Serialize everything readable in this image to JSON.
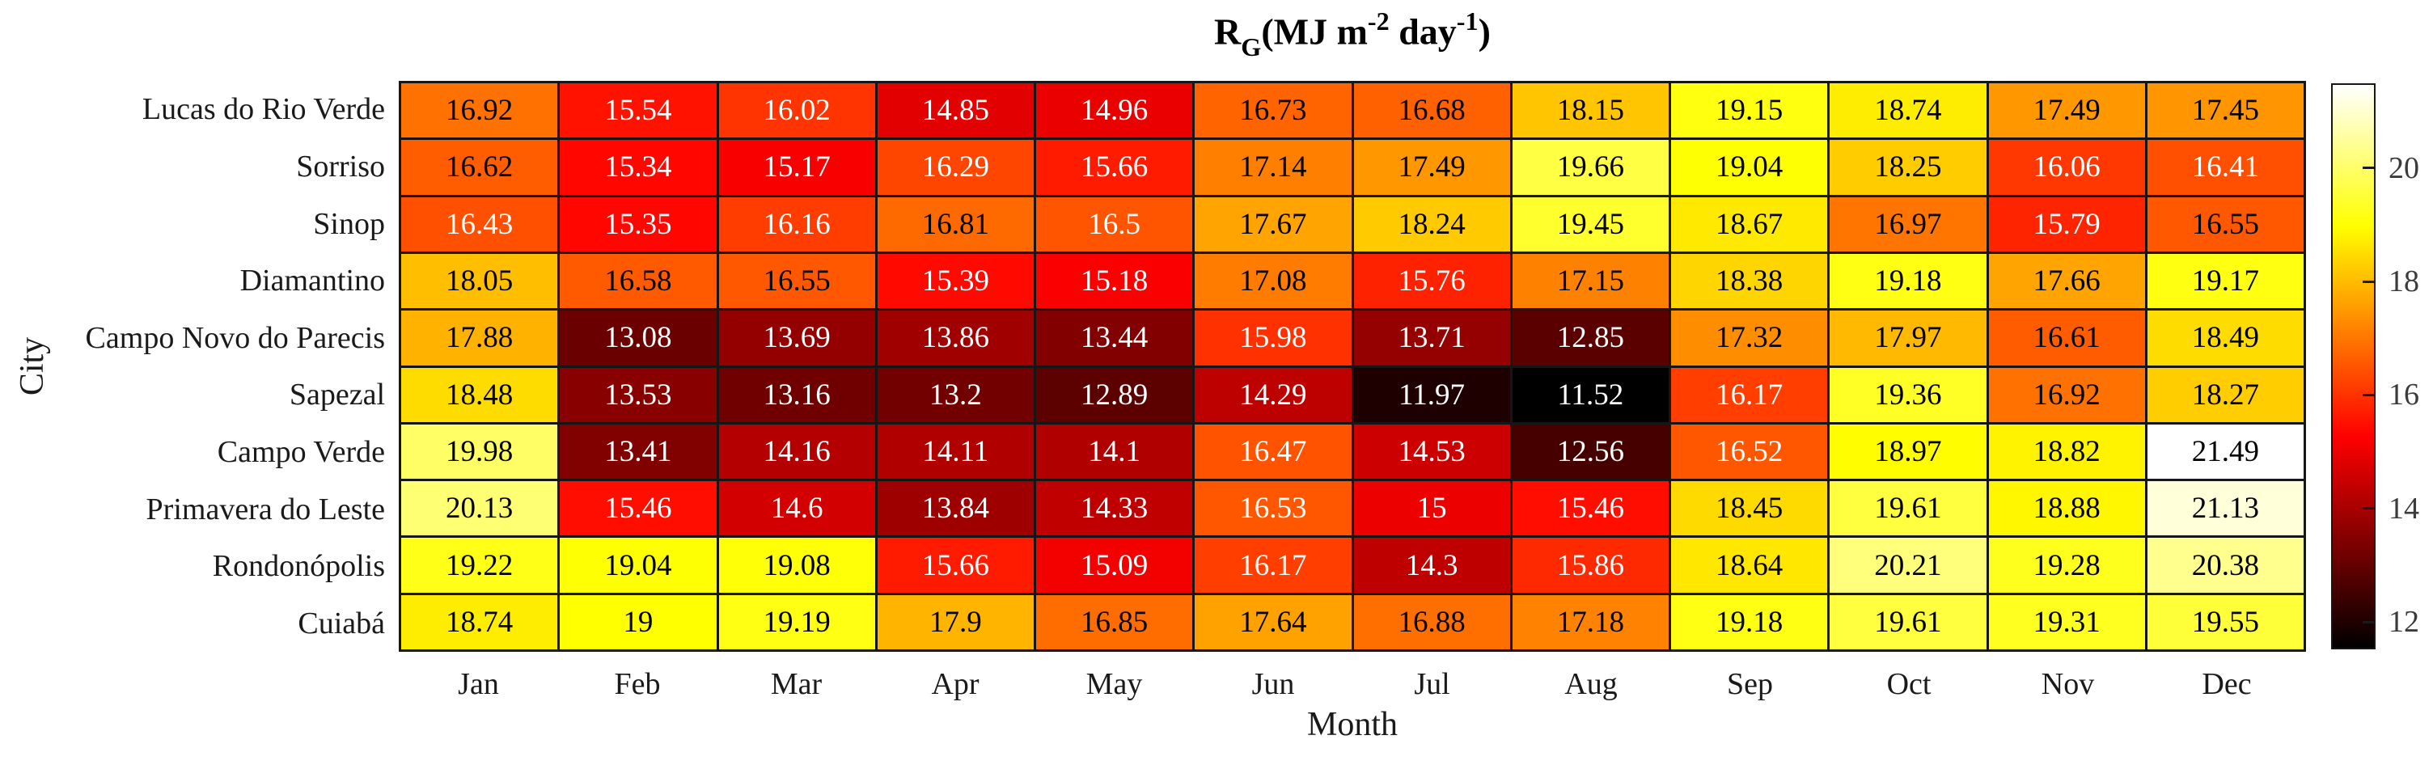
{
  "style": {
    "background": "#ffffff",
    "grid_line_color": "#161616",
    "label_color": "#1a1a1a",
    "colorbar_label_color": "#3b3b3b",
    "cell_text_dark": "#000000",
    "cell_text_light": "#ffffff"
  },
  "chart_data": {
    "type": "heatmap",
    "title": "R_G (MJ m^-2 day^-1)",
    "title_parts": {
      "r": "R",
      "sub": "G",
      "open": "(MJ m",
      "exp_m": "-2",
      "day": " day",
      "exp_d": "-1",
      "close": ")"
    },
    "xlabel": "Month",
    "ylabel": "City",
    "columns": [
      "Jan",
      "Feb",
      "Mar",
      "Apr",
      "May",
      "Jun",
      "Jul",
      "Aug",
      "Sep",
      "Oct",
      "Nov",
      "Dec"
    ],
    "rows": [
      "Lucas do Rio Verde",
      "Sorriso",
      "Sinop",
      "Diamantino",
      "Campo Novo do Parecis",
      "Sapezal",
      "Campo Verde",
      "Primavera do Leste",
      "Rondonópolis",
      "Cuiabá"
    ],
    "values": [
      [
        16.92,
        15.54,
        16.02,
        14.85,
        14.96,
        16.73,
        16.68,
        18.15,
        19.15,
        18.74,
        17.49,
        17.45
      ],
      [
        16.62,
        15.34,
        15.17,
        16.29,
        15.66,
        17.14,
        17.49,
        19.66,
        19.04,
        18.25,
        16.06,
        16.41
      ],
      [
        16.43,
        15.35,
        16.16,
        16.81,
        16.5,
        17.67,
        18.24,
        19.45,
        18.67,
        16.97,
        15.79,
        16.55
      ],
      [
        18.05,
        16.58,
        16.55,
        15.39,
        15.18,
        17.08,
        15.76,
        17.15,
        18.38,
        19.18,
        17.66,
        19.17
      ],
      [
        17.88,
        13.08,
        13.69,
        13.86,
        13.44,
        15.98,
        13.71,
        12.85,
        17.32,
        17.97,
        16.61,
        18.49
      ],
      [
        18.48,
        13.53,
        13.16,
        13.2,
        12.89,
        14.29,
        11.97,
        11.52,
        16.17,
        19.36,
        16.92,
        18.27
      ],
      [
        19.98,
        13.41,
        14.16,
        14.11,
        14.1,
        16.47,
        14.53,
        12.56,
        16.52,
        18.97,
        18.82,
        21.49
      ],
      [
        20.13,
        15.46,
        14.6,
        13.84,
        14.33,
        16.53,
        15,
        15.46,
        18.45,
        19.61,
        18.88,
        21.13
      ],
      [
        19.22,
        19.04,
        19.08,
        15.66,
        15.09,
        16.17,
        14.3,
        15.86,
        18.64,
        20.21,
        19.28,
        20.38
      ],
      [
        18.74,
        19,
        19.19,
        17.9,
        16.85,
        17.64,
        16.88,
        17.18,
        19.18,
        19.61,
        19.31,
        19.55
      ]
    ],
    "colormap": "hot",
    "color_min": 11.52,
    "color_max": 21.49,
    "colorbar_ticks": [
      12,
      14,
      16,
      18,
      20
    ],
    "grid": true,
    "legend_position": "right-colorbar"
  }
}
